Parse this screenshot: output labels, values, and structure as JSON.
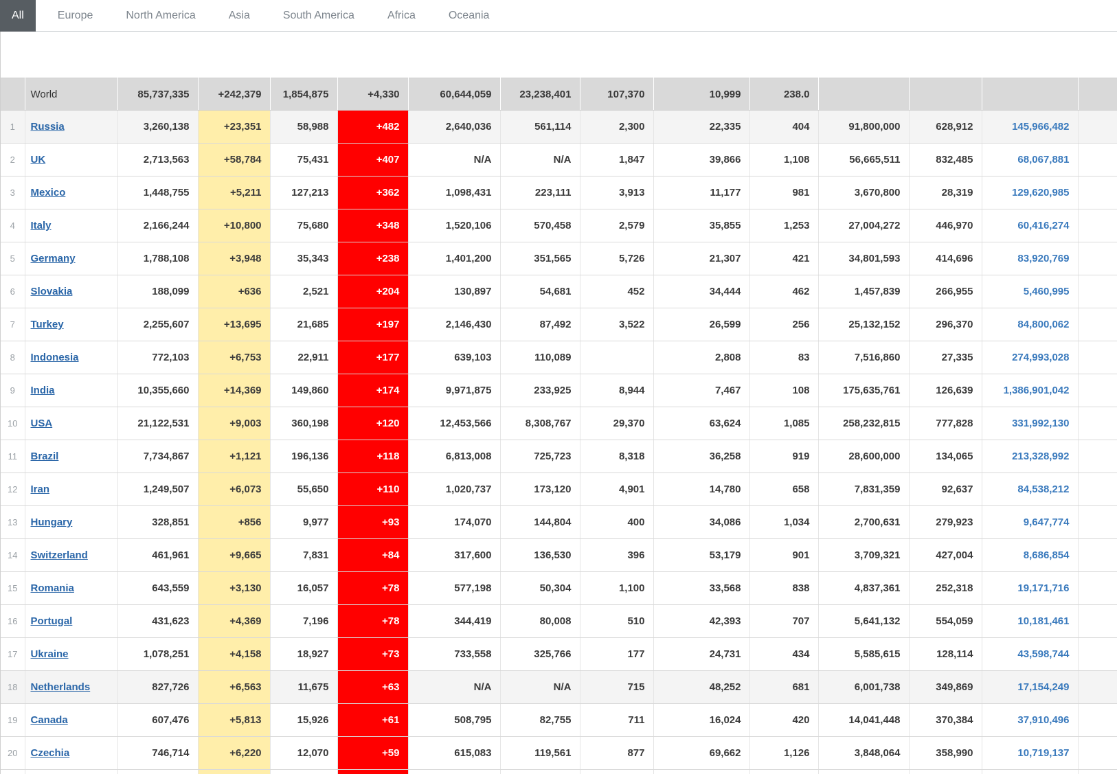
{
  "tabs": [
    {
      "label": "All",
      "active": true
    },
    {
      "label": "Europe",
      "active": false
    },
    {
      "label": "North America",
      "active": false
    },
    {
      "label": "Asia",
      "active": false
    },
    {
      "label": "South America",
      "active": false
    },
    {
      "label": "Africa",
      "active": false
    },
    {
      "label": "Oceania",
      "active": false
    }
  ],
  "colors": {
    "active_tab_bg": "#575d62",
    "tab_border": "#c8ccd0",
    "summary_row_bg": "#d9d9d9",
    "new_cases_bg": "#ffeeaa",
    "new_deaths_bg": "#ff0000",
    "country_link": "#2a66a8",
    "population_text": "#3a7abd"
  },
  "table": {
    "summary_row": {
      "label": "World",
      "total_cases": "85,737,335",
      "new_cases": "+242,379",
      "total_deaths": "1,854,875",
      "new_deaths": "+4,330",
      "total_recovered": "60,644,059",
      "active_cases": "23,238,401",
      "serious_critical": "107,370",
      "cases_per_1m": "10,999",
      "deaths_per_1m": "238.0",
      "total_tests": "",
      "tests_per_1m": "",
      "population": ""
    },
    "rows": [
      {
        "rank": "1",
        "country": "Russia",
        "total_cases": "3,260,138",
        "new_cases": "+23,351",
        "total_deaths": "58,988",
        "new_deaths": "+482",
        "total_recovered": "2,640,036",
        "active_cases": "561,114",
        "serious_critical": "2,300",
        "cases_per_1m": "22,335",
        "deaths_per_1m": "404",
        "total_tests": "91,800,000",
        "tests_per_1m": "628,912",
        "population": "145,966,482",
        "shaded": true
      },
      {
        "rank": "2",
        "country": "UK",
        "total_cases": "2,713,563",
        "new_cases": "+58,784",
        "total_deaths": "75,431",
        "new_deaths": "+407",
        "total_recovered": "N/A",
        "active_cases": "N/A",
        "serious_critical": "1,847",
        "cases_per_1m": "39,866",
        "deaths_per_1m": "1,108",
        "total_tests": "56,665,511",
        "tests_per_1m": "832,485",
        "population": "68,067,881",
        "shaded": false
      },
      {
        "rank": "3",
        "country": "Mexico",
        "total_cases": "1,448,755",
        "new_cases": "+5,211",
        "total_deaths": "127,213",
        "new_deaths": "+362",
        "total_recovered": "1,098,431",
        "active_cases": "223,111",
        "serious_critical": "3,913",
        "cases_per_1m": "11,177",
        "deaths_per_1m": "981",
        "total_tests": "3,670,800",
        "tests_per_1m": "28,319",
        "population": "129,620,985",
        "shaded": false
      },
      {
        "rank": "4",
        "country": "Italy",
        "total_cases": "2,166,244",
        "new_cases": "+10,800",
        "total_deaths": "75,680",
        "new_deaths": "+348",
        "total_recovered": "1,520,106",
        "active_cases": "570,458",
        "serious_critical": "2,579",
        "cases_per_1m": "35,855",
        "deaths_per_1m": "1,253",
        "total_tests": "27,004,272",
        "tests_per_1m": "446,970",
        "population": "60,416,274",
        "shaded": false
      },
      {
        "rank": "5",
        "country": "Germany",
        "total_cases": "1,788,108",
        "new_cases": "+3,948",
        "total_deaths": "35,343",
        "new_deaths": "+238",
        "total_recovered": "1,401,200",
        "active_cases": "351,565",
        "serious_critical": "5,726",
        "cases_per_1m": "21,307",
        "deaths_per_1m": "421",
        "total_tests": "34,801,593",
        "tests_per_1m": "414,696",
        "population": "83,920,769",
        "shaded": false
      },
      {
        "rank": "6",
        "country": "Slovakia",
        "total_cases": "188,099",
        "new_cases": "+636",
        "total_deaths": "2,521",
        "new_deaths": "+204",
        "total_recovered": "130,897",
        "active_cases": "54,681",
        "serious_critical": "452",
        "cases_per_1m": "34,444",
        "deaths_per_1m": "462",
        "total_tests": "1,457,839",
        "tests_per_1m": "266,955",
        "population": "5,460,995",
        "shaded": false
      },
      {
        "rank": "7",
        "country": "Turkey",
        "total_cases": "2,255,607",
        "new_cases": "+13,695",
        "total_deaths": "21,685",
        "new_deaths": "+197",
        "total_recovered": "2,146,430",
        "active_cases": "87,492",
        "serious_critical": "3,522",
        "cases_per_1m": "26,599",
        "deaths_per_1m": "256",
        "total_tests": "25,132,152",
        "tests_per_1m": "296,370",
        "population": "84,800,062",
        "shaded": false
      },
      {
        "rank": "8",
        "country": "Indonesia",
        "total_cases": "772,103",
        "new_cases": "+6,753",
        "total_deaths": "22,911",
        "new_deaths": "+177",
        "total_recovered": "639,103",
        "active_cases": "110,089",
        "serious_critical": "",
        "cases_per_1m": "2,808",
        "deaths_per_1m": "83",
        "total_tests": "7,516,860",
        "tests_per_1m": "27,335",
        "population": "274,993,028",
        "shaded": false
      },
      {
        "rank": "9",
        "country": "India",
        "total_cases": "10,355,660",
        "new_cases": "+14,369",
        "total_deaths": "149,860",
        "new_deaths": "+174",
        "total_recovered": "9,971,875",
        "active_cases": "233,925",
        "serious_critical": "8,944",
        "cases_per_1m": "7,467",
        "deaths_per_1m": "108",
        "total_tests": "175,635,761",
        "tests_per_1m": "126,639",
        "population": "1,386,901,042",
        "shaded": false
      },
      {
        "rank": "10",
        "country": "USA",
        "total_cases": "21,122,531",
        "new_cases": "+9,003",
        "total_deaths": "360,198",
        "new_deaths": "+120",
        "total_recovered": "12,453,566",
        "active_cases": "8,308,767",
        "serious_critical": "29,370",
        "cases_per_1m": "63,624",
        "deaths_per_1m": "1,085",
        "total_tests": "258,232,815",
        "tests_per_1m": "777,828",
        "population": "331,992,130",
        "shaded": false
      },
      {
        "rank": "11",
        "country": "Brazil",
        "total_cases": "7,734,867",
        "new_cases": "+1,121",
        "total_deaths": "196,136",
        "new_deaths": "+118",
        "total_recovered": "6,813,008",
        "active_cases": "725,723",
        "serious_critical": "8,318",
        "cases_per_1m": "36,258",
        "deaths_per_1m": "919",
        "total_tests": "28,600,000",
        "tests_per_1m": "134,065",
        "population": "213,328,992",
        "shaded": false
      },
      {
        "rank": "12",
        "country": "Iran",
        "total_cases": "1,249,507",
        "new_cases": "+6,073",
        "total_deaths": "55,650",
        "new_deaths": "+110",
        "total_recovered": "1,020,737",
        "active_cases": "173,120",
        "serious_critical": "4,901",
        "cases_per_1m": "14,780",
        "deaths_per_1m": "658",
        "total_tests": "7,831,359",
        "tests_per_1m": "92,637",
        "population": "84,538,212",
        "shaded": false
      },
      {
        "rank": "13",
        "country": "Hungary",
        "total_cases": "328,851",
        "new_cases": "+856",
        "total_deaths": "9,977",
        "new_deaths": "+93",
        "total_recovered": "174,070",
        "active_cases": "144,804",
        "serious_critical": "400",
        "cases_per_1m": "34,086",
        "deaths_per_1m": "1,034",
        "total_tests": "2,700,631",
        "tests_per_1m": "279,923",
        "population": "9,647,774",
        "shaded": false
      },
      {
        "rank": "14",
        "country": "Switzerland",
        "total_cases": "461,961",
        "new_cases": "+9,665",
        "total_deaths": "7,831",
        "new_deaths": "+84",
        "total_recovered": "317,600",
        "active_cases": "136,530",
        "serious_critical": "396",
        "cases_per_1m": "53,179",
        "deaths_per_1m": "901",
        "total_tests": "3,709,321",
        "tests_per_1m": "427,004",
        "population": "8,686,854",
        "shaded": false
      },
      {
        "rank": "15",
        "country": "Romania",
        "total_cases": "643,559",
        "new_cases": "+3,130",
        "total_deaths": "16,057",
        "new_deaths": "+78",
        "total_recovered": "577,198",
        "active_cases": "50,304",
        "serious_critical": "1,100",
        "cases_per_1m": "33,568",
        "deaths_per_1m": "838",
        "total_tests": "4,837,361",
        "tests_per_1m": "252,318",
        "population": "19,171,716",
        "shaded": false
      },
      {
        "rank": "16",
        "country": "Portugal",
        "total_cases": "431,623",
        "new_cases": "+4,369",
        "total_deaths": "7,196",
        "new_deaths": "+78",
        "total_recovered": "344,419",
        "active_cases": "80,008",
        "serious_critical": "510",
        "cases_per_1m": "42,393",
        "deaths_per_1m": "707",
        "total_tests": "5,641,132",
        "tests_per_1m": "554,059",
        "population": "10,181,461",
        "shaded": false
      },
      {
        "rank": "17",
        "country": "Ukraine",
        "total_cases": "1,078,251",
        "new_cases": "+4,158",
        "total_deaths": "18,927",
        "new_deaths": "+73",
        "total_recovered": "733,558",
        "active_cases": "325,766",
        "serious_critical": "177",
        "cases_per_1m": "24,731",
        "deaths_per_1m": "434",
        "total_tests": "5,585,615",
        "tests_per_1m": "128,114",
        "population": "43,598,744",
        "shaded": false
      },
      {
        "rank": "18",
        "country": "Netherlands",
        "total_cases": "827,726",
        "new_cases": "+6,563",
        "total_deaths": "11,675",
        "new_deaths": "+63",
        "total_recovered": "N/A",
        "active_cases": "N/A",
        "serious_critical": "715",
        "cases_per_1m": "48,252",
        "deaths_per_1m": "681",
        "total_tests": "6,001,738",
        "tests_per_1m": "349,869",
        "population": "17,154,249",
        "shaded": true
      },
      {
        "rank": "19",
        "country": "Canada",
        "total_cases": "607,476",
        "new_cases": "+5,813",
        "total_deaths": "15,926",
        "new_deaths": "+61",
        "total_recovered": "508,795",
        "active_cases": "82,755",
        "serious_critical": "711",
        "cases_per_1m": "16,024",
        "deaths_per_1m": "420",
        "total_tests": "14,041,448",
        "tests_per_1m": "370,384",
        "population": "37,910,496",
        "shaded": false
      },
      {
        "rank": "20",
        "country": "Czechia",
        "total_cases": "746,714",
        "new_cases": "+6,220",
        "total_deaths": "12,070",
        "new_deaths": "+59",
        "total_recovered": "615,083",
        "active_cases": "119,561",
        "serious_critical": "877",
        "cases_per_1m": "69,662",
        "deaths_per_1m": "1,126",
        "total_tests": "3,848,064",
        "tests_per_1m": "358,990",
        "population": "10,719,137",
        "shaded": false
      }
    ]
  }
}
